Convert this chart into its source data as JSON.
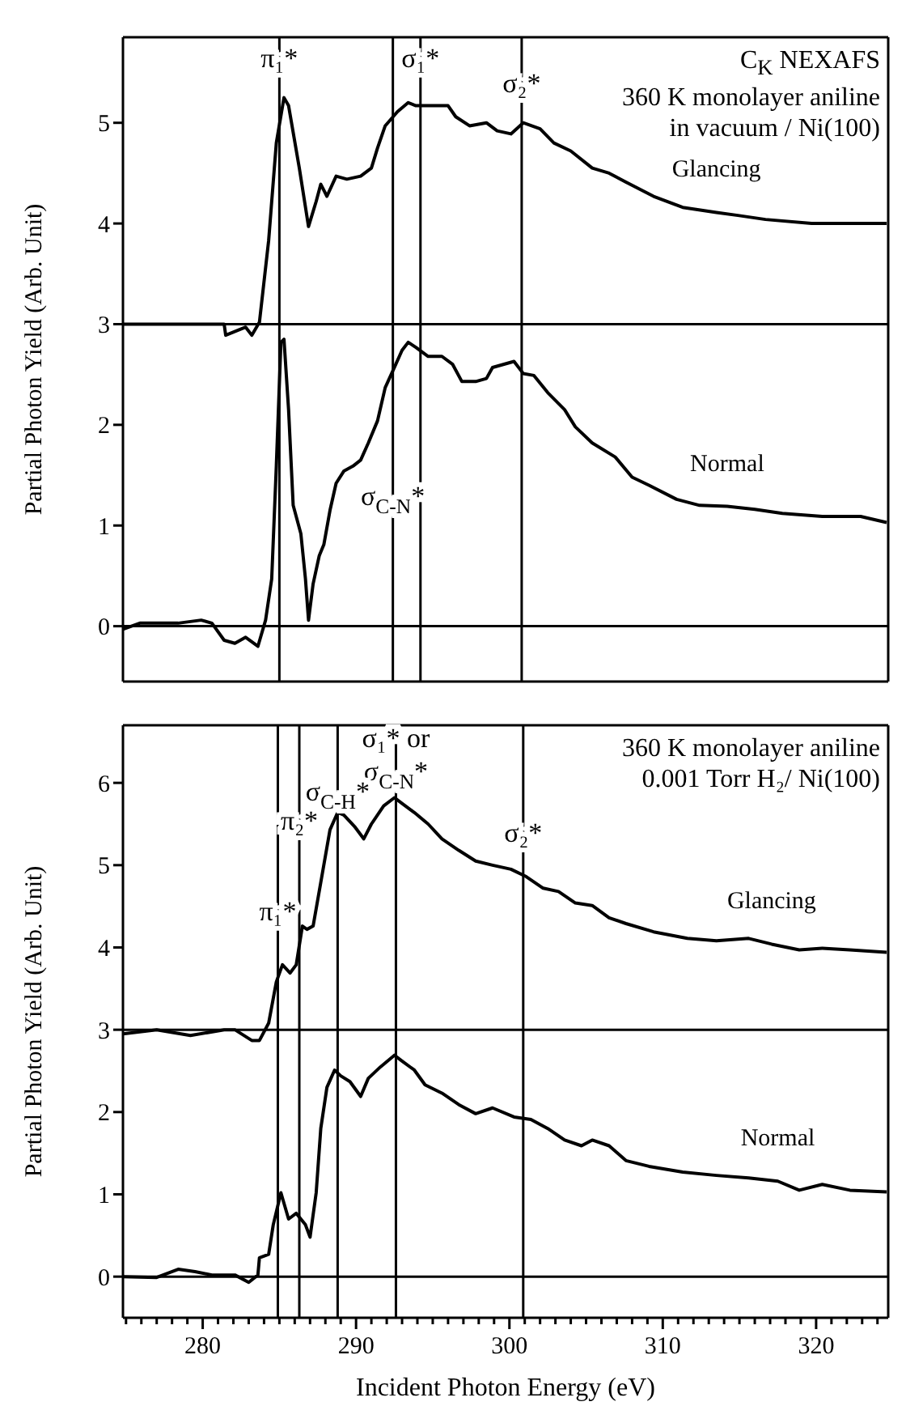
{
  "chart_data": [
    {
      "type": "line",
      "ylabel": "Partial Photon Yield (Arb. Unit)",
      "xlim": [
        274.8,
        324.7
      ],
      "ylim": [
        -0.55,
        5.85
      ],
      "yticks": [
        0,
        1,
        2,
        3,
        4,
        5
      ],
      "tick_labels": "y",
      "annotations": [
        "C$_{K}$ NEXAFS",
        "360 K monolayer aniline",
        "in vacuum / Ni(100)",
        {
          "text": "π₁*",
          "x": 285.0,
          "y": 5.65
        },
        {
          "text": "σ₁*",
          "x": 294.2,
          "y": 5.65
        },
        {
          "text": "σ₂*",
          "x": 300.8,
          "y": 5.4
        },
        {
          "text": "σ$_{C-N}$*",
          "x": 292.4,
          "y": 1.3
        }
      ],
      "ref_lines": [
        {
          "axis": "y",
          "value": 3,
          "color": "#000000"
        },
        {
          "axis": "y",
          "value": 0,
          "color": "#000000"
        },
        {
          "axis": "x",
          "value": 285.0,
          "color": "#000000"
        },
        {
          "axis": "x",
          "value": 292.4,
          "color": "#000000"
        },
        {
          "axis": "x",
          "value": 294.2,
          "color": "#000000"
        },
        {
          "axis": "x",
          "value": 300.8,
          "color": "#000000"
        }
      ],
      "series": [
        {
          "name": "Glancing",
          "color": "#000000",
          "x": [
            274.8,
            281.4,
            281.5,
            282.8,
            283.2,
            283.7,
            284.3,
            284.8,
            285.3,
            285.6,
            286.3,
            286.9,
            287.4,
            287.7,
            288.1,
            288.7,
            289.4,
            290.3,
            291.0,
            291.4,
            291.9,
            292.7,
            293.4,
            293.9,
            294.5,
            295.2,
            296.0,
            296.5,
            297.4,
            298.5,
            299.2,
            300.1,
            300.9,
            302.0,
            302.9,
            304.0,
            305.4,
            306.5,
            307.6,
            309.4,
            311.3,
            313.5,
            314.9,
            316.7,
            319.7,
            324.6
          ],
          "values": [
            3.0,
            3.0,
            2.89,
            2.97,
            2.89,
            3.02,
            3.83,
            4.8,
            5.25,
            5.17,
            4.55,
            3.97,
            4.22,
            4.39,
            4.27,
            4.47,
            4.44,
            4.47,
            4.55,
            4.75,
            4.97,
            5.11,
            5.2,
            5.17,
            5.17,
            5.17,
            5.17,
            5.06,
            4.97,
            5.0,
            4.92,
            4.89,
            5.0,
            4.94,
            4.8,
            4.72,
            4.55,
            4.5,
            4.41,
            4.27,
            4.16,
            4.11,
            4.08,
            4.04,
            4.0,
            4.0
          ]
        },
        {
          "name": "Normal",
          "color": "#000000",
          "x": [
            274.8,
            275.9,
            278.4,
            279.9,
            280.6,
            281.4,
            282.1,
            282.8,
            283.6,
            284.1,
            284.5,
            284.8,
            285.1,
            285.3,
            285.6,
            285.9,
            286.4,
            286.7,
            286.9,
            287.2,
            287.6,
            287.9,
            288.3,
            288.7,
            289.2,
            289.8,
            290.3,
            290.8,
            291.4,
            291.9,
            292.5,
            293.0,
            293.4,
            293.9,
            294.7,
            295.6,
            296.3,
            296.9,
            297.8,
            298.5,
            298.9,
            299.6,
            300.3,
            300.9,
            301.6,
            302.5,
            303.6,
            304.3,
            305.4,
            306.9,
            308.0,
            309.1,
            310.9,
            312.4,
            314.2,
            316.0,
            317.8,
            320.4,
            322.9,
            324.6
          ],
          "values": [
            -0.03,
            0.03,
            0.03,
            0.06,
            0.03,
            -0.14,
            -0.17,
            -0.11,
            -0.2,
            0.06,
            0.47,
            1.59,
            2.82,
            2.85,
            2.15,
            1.2,
            0.92,
            0.47,
            0.06,
            0.42,
            0.7,
            0.81,
            1.15,
            1.42,
            1.54,
            1.59,
            1.65,
            1.82,
            2.04,
            2.37,
            2.57,
            2.74,
            2.82,
            2.77,
            2.68,
            2.68,
            2.6,
            2.43,
            2.43,
            2.46,
            2.57,
            2.6,
            2.63,
            2.51,
            2.49,
            2.32,
            2.15,
            1.98,
            1.82,
            1.68,
            1.48,
            1.4,
            1.26,
            1.2,
            1.19,
            1.16,
            1.12,
            1.09,
            1.09,
            1.03
          ]
        }
      ]
    },
    {
      "type": "line",
      "xlabel": "Incident Photon Energy (eV)",
      "ylabel": "Partial Photon Yield (Arb. Unit)",
      "xlim": [
        274.8,
        324.7
      ],
      "ylim": [
        -0.5,
        6.7
      ],
      "yticks": [
        0,
        1,
        2,
        3,
        4,
        5,
        6
      ],
      "xticks": [
        {
          "value": 275,
          "label": null
        },
        {
          "value": 276,
          "label": null
        },
        {
          "value": 277,
          "label": null
        },
        {
          "value": 278,
          "label": null
        },
        {
          "value": 279,
          "label": null
        },
        280,
        {
          "value": 281,
          "label": null
        },
        {
          "value": 282,
          "label": null
        },
        {
          "value": 283,
          "label": null
        },
        {
          "value": 284,
          "label": null
        },
        {
          "value": 285,
          "label": null
        },
        {
          "value": 286,
          "label": null
        },
        {
          "value": 287,
          "label": null
        },
        {
          "value": 288,
          "label": null
        },
        {
          "value": 289,
          "label": null
        },
        290,
        {
          "value": 291,
          "label": null
        },
        {
          "value": 292,
          "label": null
        },
        {
          "value": 293,
          "label": null
        },
        {
          "value": 294,
          "label": null
        },
        {
          "value": 295,
          "label": null
        },
        {
          "value": 296,
          "label": null
        },
        {
          "value": 297,
          "label": null
        },
        {
          "value": 298,
          "label": null
        },
        {
          "value": 299,
          "label": null
        },
        300,
        {
          "value": 301,
          "label": null
        },
        {
          "value": 302,
          "label": null
        },
        {
          "value": 303,
          "label": null
        },
        {
          "value": 304,
          "label": null
        },
        {
          "value": 305,
          "label": null
        },
        {
          "value": 306,
          "label": null
        },
        {
          "value": 307,
          "label": null
        },
        {
          "value": 308,
          "label": null
        },
        {
          "value": 309,
          "label": null
        },
        310,
        {
          "value": 311,
          "label": null
        },
        {
          "value": 312,
          "label": null
        },
        {
          "value": 313,
          "label": null
        },
        {
          "value": 314,
          "label": null
        },
        {
          "value": 315,
          "label": null
        },
        {
          "value": 316,
          "label": null
        },
        {
          "value": 317,
          "label": null
        },
        {
          "value": 318,
          "label": null
        },
        {
          "value": 319,
          "label": null
        },
        320,
        {
          "value": 321,
          "label": null
        },
        {
          "value": 322,
          "label": null
        },
        {
          "value": 323,
          "label": null
        },
        {
          "value": 324,
          "label": null
        }
      ],
      "annotations": [
        "360 K monolayer aniline",
        "0.001 Torr H₂/ Ni(100)",
        {
          "text": "σ₁* or",
          "x": 292.6,
          "y": 6.55
        },
        {
          "text": "σ$_{C-N}$*",
          "x": 292.6,
          "y": 6.15
        },
        {
          "text": "σ$_{C-H}$*",
          "x": 288.8,
          "y": 5.9
        },
        {
          "text": "π₂*",
          "x": 286.3,
          "y": 5.55
        },
        {
          "text": "π₁*",
          "x": 284.9,
          "y": 4.45
        },
        {
          "text": "σ₂*",
          "x": 300.9,
          "y": 5.4
        }
      ],
      "ref_lines": [
        {
          "axis": "y",
          "value": 3,
          "color": "#000000"
        },
        {
          "axis": "y",
          "value": 0,
          "color": "#000000"
        },
        {
          "axis": "x",
          "value": 284.9,
          "color": "#000000"
        },
        {
          "axis": "x",
          "value": 286.3,
          "color": "#000000"
        },
        {
          "axis": "x",
          "value": 288.8,
          "color": "#000000"
        },
        {
          "axis": "x",
          "value": 292.6,
          "color": "#000000"
        },
        {
          "axis": "x",
          "value": 300.9,
          "color": "#000000"
        }
      ],
      "series": [
        {
          "name": "Glancing",
          "color": "#000000",
          "x": [
            274.8,
            277.0,
            279.2,
            281.4,
            282.1,
            283.2,
            283.7,
            284.3,
            284.8,
            285.2,
            285.7,
            286.1,
            286.5,
            286.8,
            287.2,
            287.7,
            288.3,
            288.8,
            289.2,
            289.9,
            290.5,
            291.0,
            291.8,
            292.5,
            293.0,
            293.8,
            294.7,
            295.6,
            296.7,
            297.8,
            298.9,
            300.1,
            301.1,
            302.2,
            303.2,
            304.3,
            305.4,
            306.5,
            307.6,
            309.4,
            311.6,
            313.5,
            315.6,
            317.1,
            318.9,
            320.4,
            322.2,
            324.6
          ],
          "values": [
            2.95,
            3.0,
            2.93,
            3.0,
            3.0,
            2.87,
            2.87,
            3.08,
            3.58,
            3.79,
            3.69,
            3.79,
            4.26,
            4.22,
            4.26,
            4.79,
            5.43,
            5.64,
            5.61,
            5.47,
            5.32,
            5.5,
            5.72,
            5.82,
            5.75,
            5.64,
            5.5,
            5.32,
            5.18,
            5.05,
            5.0,
            4.95,
            4.86,
            4.72,
            4.68,
            4.54,
            4.51,
            4.36,
            4.29,
            4.19,
            4.11,
            4.08,
            4.11,
            4.04,
            3.97,
            3.99,
            3.97,
            3.94
          ]
        },
        {
          "name": "Normal",
          "color": "#000000",
          "x": [
            274.8,
            277.0,
            278.4,
            279.5,
            280.6,
            282.1,
            283.0,
            283.6,
            283.7,
            284.3,
            284.6,
            285.1,
            285.6,
            286.1,
            286.7,
            287.0,
            287.4,
            287.7,
            288.1,
            288.6,
            289.0,
            289.6,
            290.3,
            290.8,
            291.6,
            292.5,
            293.0,
            293.8,
            294.5,
            295.6,
            296.7,
            297.8,
            298.9,
            300.3,
            301.4,
            302.5,
            303.6,
            304.7,
            305.4,
            306.5,
            307.6,
            309.1,
            311.3,
            313.5,
            315.6,
            317.5,
            318.9,
            320.4,
            322.2,
            324.6
          ],
          "values": [
            0,
            -0.01,
            0.09,
            0.06,
            0.02,
            0.02,
            -0.07,
            0.02,
            0.23,
            0.27,
            0.63,
            1.02,
            0.7,
            0.77,
            0.63,
            0.48,
            1.02,
            1.8,
            2.3,
            2.51,
            2.44,
            2.37,
            2.19,
            2.41,
            2.55,
            2.69,
            2.62,
            2.51,
            2.33,
            2.23,
            2.09,
            1.98,
            2.05,
            1.94,
            1.91,
            1.8,
            1.66,
            1.59,
            1.66,
            1.59,
            1.41,
            1.34,
            1.27,
            1.23,
            1.2,
            1.16,
            1.05,
            1.12,
            1.05,
            1.03
          ]
        }
      ]
    }
  ]
}
